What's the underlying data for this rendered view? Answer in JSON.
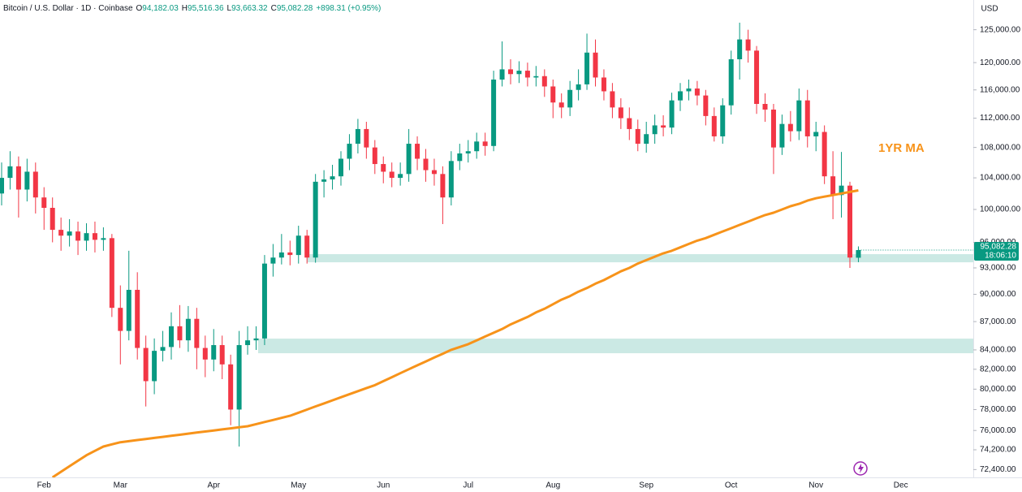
{
  "chart_data": {
    "type": "candlestick",
    "header": {
      "symbol": "Bitcoin / U.S. Dollar · 1D · Coinbase",
      "items": [
        {
          "key": "O",
          "value": "94,182.03"
        },
        {
          "key": "H",
          "value": "95,516.36"
        },
        {
          "key": "L",
          "value": "93,663.32"
        },
        {
          "key": "C",
          "value": "95,082.28"
        }
      ],
      "change": "+898.31 (+0.95%)"
    },
    "currency": "USD",
    "last_price_label": "95,082.28",
    "countdown": "18:06:10",
    "log_scale": true,
    "grid": false,
    "up_color": "#089981",
    "down_color": "#f23645",
    "categories": [
      null,
      null,
      null,
      null,
      null,
      "Feb",
      null,
      null,
      null,
      null,
      null,
      null,
      null,
      null,
      "Mar",
      null,
      null,
      null,
      null,
      null,
      null,
      null,
      null,
      null,
      null,
      "Apr",
      null,
      null,
      null,
      null,
      null,
      null,
      null,
      null,
      null,
      "May",
      null,
      null,
      null,
      null,
      null,
      null,
      null,
      null,
      null,
      "Jun",
      null,
      null,
      null,
      null,
      null,
      null,
      null,
      null,
      null,
      "Jul",
      null,
      null,
      null,
      null,
      null,
      null,
      null,
      null,
      null,
      "Aug",
      null,
      null,
      null,
      null,
      null,
      null,
      null,
      null,
      null,
      null,
      "Sep",
      null,
      null,
      null,
      null,
      null,
      null,
      null,
      null,
      null,
      "Oct",
      null,
      null,
      null,
      null,
      null,
      null,
      null,
      null,
      null,
      "Nov",
      null,
      null,
      null,
      null,
      null,
      null,
      null,
      null,
      null,
      "Dec"
    ],
    "open": [
      102000,
      104000,
      105500,
      102500,
      104800,
      101500,
      100200,
      97500,
      96800,
      97300,
      96200,
      97100,
      96300,
      96500,
      88500,
      86000,
      90500,
      84200,
      80800,
      83900,
      84300,
      86500,
      85000,
      87300,
      84200,
      83000,
      84500,
      82500,
      78000,
      84500,
      85000,
      85200,
      93500,
      94200,
      94800,
      94500,
      96800,
      94200,
      103500,
      103800,
      104200,
      106500,
      108500,
      110500,
      108000,
      105800,
      104800,
      104000,
      104500,
      108500,
      106500,
      105000,
      104500,
      101500,
      106200,
      107200,
      107500,
      108800,
      108200,
      117500,
      119000,
      118300,
      118800,
      117800,
      118000,
      116500,
      114200,
      113500,
      116000,
      116800,
      121500,
      117800,
      115800,
      113500,
      112000,
      110500,
      108500,
      109800,
      111000,
      110700,
      114500,
      115800,
      116200,
      115200,
      112300,
      109500,
      113800,
      120500,
      123500,
      121800,
      114000,
      113200,
      108000,
      111200,
      110200,
      114500,
      109500,
      110100,
      104200,
      101800,
      103000,
      94182.03,
      null,
      null,
      null,
      null,
      null
    ],
    "high": [
      106000,
      107500,
      106800,
      106500,
      106000,
      102800,
      101500,
      99000,
      98800,
      98500,
      98300,
      98500,
      97800,
      97000,
      91000,
      95000,
      92500,
      85500,
      85200,
      86000,
      88000,
      88800,
      88700,
      88500,
      85500,
      86200,
      85500,
      83500,
      86000,
      86500,
      86500,
      94500,
      95800,
      97000,
      96200,
      98000,
      97500,
      104500,
      105000,
      105700,
      107500,
      109800,
      111900,
      111500,
      109000,
      106800,
      106000,
      106000,
      110500,
      109500,
      107800,
      106500,
      105500,
      107500,
      108500,
      109000,
      110000,
      110000,
      118800,
      123200,
      120500,
      120200,
      120000,
      119500,
      119000,
      117500,
      115500,
      117300,
      119000,
      124400,
      123500,
      119000,
      117000,
      114800,
      113500,
      111800,
      111500,
      112500,
      112400,
      115600,
      117000,
      117500,
      117300,
      116000,
      113500,
      114800,
      121800,
      126100,
      125000,
      122500,
      115500,
      114000,
      112500,
      113000,
      116200,
      116000,
      111500,
      111000,
      107500,
      107400,
      103500,
      95516.36,
      null,
      null,
      null,
      null,
      null
    ],
    "low": [
      100500,
      102500,
      99000,
      101000,
      99500,
      97500,
      96000,
      95000,
      95500,
      94500,
      95000,
      94800,
      95000,
      87500,
      82500,
      85000,
      83000,
      78300,
      79500,
      82800,
      83000,
      84200,
      83800,
      82000,
      81200,
      81800,
      81000,
      76500,
      74500,
      83500,
      84000,
      84500,
      92000,
      93400,
      93300,
      93500,
      93500,
      93600,
      101500,
      102500,
      103000,
      105000,
      107200,
      106500,
      104500,
      103300,
      102800,
      103000,
      103500,
      105000,
      103500,
      103000,
      98200,
      100500,
      105000,
      106000,
      106500,
      106900,
      107500,
      116500,
      116800,
      117000,
      116500,
      116500,
      115000,
      112000,
      112000,
      112300,
      114500,
      116000,
      116500,
      114500,
      112000,
      110500,
      109000,
      107500,
      107300,
      108500,
      109500,
      109800,
      113000,
      114500,
      113800,
      111000,
      108800,
      108500,
      112500,
      117500,
      120000,
      112600,
      111500,
      104500,
      107000,
      108800,
      109000,
      108000,
      107500,
      103200,
      98800,
      99000,
      93000,
      93663.32,
      null,
      null,
      null,
      null,
      null
    ],
    "close": [
      104000,
      105500,
      102500,
      104800,
      101500,
      100200,
      97500,
      96800,
      97300,
      96200,
      97100,
      96300,
      96500,
      88500,
      86000,
      90500,
      84200,
      80800,
      83900,
      84300,
      86500,
      85000,
      87300,
      84200,
      83000,
      84500,
      82500,
      78000,
      84500,
      85000,
      85200,
      93500,
      94200,
      94800,
      94500,
      96800,
      94200,
      103500,
      103800,
      104200,
      106500,
      108500,
      110500,
      108000,
      105800,
      104800,
      104000,
      104500,
      108500,
      106500,
      105000,
      104500,
      101500,
      106200,
      107200,
      107500,
      108800,
      108200,
      117500,
      119000,
      118300,
      118800,
      117800,
      118000,
      116500,
      114200,
      113500,
      116000,
      116800,
      121500,
      117800,
      115800,
      113500,
      112000,
      110500,
      108500,
      109800,
      111000,
      110700,
      114500,
      115800,
      116200,
      115200,
      112300,
      109500,
      113800,
      120500,
      123500,
      121800,
      114000,
      113200,
      108000,
      111200,
      110200,
      114500,
      109500,
      110100,
      104200,
      101800,
      103000,
      94200,
      95082.28,
      null,
      null,
      null,
      null,
      null
    ],
    "moving_average": {
      "name": "1YR MA",
      "color": "#f7931a",
      "values": [
        null,
        null,
        null,
        null,
        null,
        null,
        71700,
        72200,
        72700,
        73200,
        73700,
        74100,
        74500,
        74700,
        74900,
        75000,
        75100,
        75200,
        75300,
        75400,
        75500,
        75600,
        75700,
        75800,
        75900,
        76000,
        76100,
        76200,
        76300,
        76400,
        76600,
        76800,
        77000,
        77200,
        77400,
        77700,
        78000,
        78300,
        78600,
        78900,
        79200,
        79500,
        79800,
        80100,
        80400,
        80800,
        81200,
        81600,
        82000,
        82400,
        82800,
        83200,
        83600,
        84000,
        84300,
        84600,
        85000,
        85400,
        85800,
        86200,
        86700,
        87100,
        87500,
        88000,
        88400,
        88900,
        89400,
        89800,
        90300,
        90700,
        91200,
        91600,
        92100,
        92600,
        93000,
        93500,
        93900,
        94300,
        94700,
        95000,
        95400,
        95800,
        96200,
        96500,
        96900,
        97300,
        97700,
        98100,
        98500,
        98900,
        99300,
        99600,
        100000,
        100400,
        100700,
        101100,
        101400,
        101600,
        101800,
        102000,
        102200,
        102400,
        null,
        null,
        null,
        null,
        null
      ]
    },
    "zones": [
      {
        "low": 93650,
        "high": 94600,
        "color": "#cbe9e4"
      },
      {
        "low": 83650,
        "high": 85180,
        "color": "#cbe9e4"
      }
    ],
    "ylim": [
      71700,
      129700
    ],
    "yticks": [
      {
        "value": 125000,
        "label": "125,000.00"
      },
      {
        "value": 120000,
        "label": "120,000.00"
      },
      {
        "value": 116000,
        "label": "116,000.00"
      },
      {
        "value": 112000,
        "label": "112,000.00"
      },
      {
        "value": 108000,
        "label": "108,000.00"
      },
      {
        "value": 104000,
        "label": "104,000.00"
      },
      {
        "value": 100000,
        "label": "100,000.00"
      },
      {
        "value": 96000,
        "label": "96,000.00"
      },
      {
        "value": 93000,
        "label": "93,000.00"
      },
      {
        "value": 90000,
        "label": "90,000.00"
      },
      {
        "value": 87000,
        "label": "87,000.00"
      },
      {
        "value": 84000,
        "label": "84,000.00"
      },
      {
        "value": 82000,
        "label": "82,000.00"
      },
      {
        "value": 80000,
        "label": "80,000.00"
      },
      {
        "value": 78000,
        "label": "78,000.00"
      },
      {
        "value": 76000,
        "label": "76,000.00"
      },
      {
        "value": 74200,
        "label": "74,200.00"
      },
      {
        "value": 72400,
        "label": "72,400.00"
      }
    ]
  }
}
